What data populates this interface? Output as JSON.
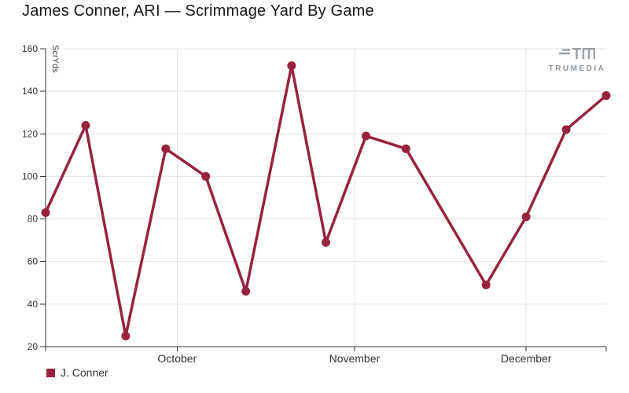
{
  "branding": {
    "logo_text": "TRUMEDIA"
  },
  "chart_data": {
    "type": "line",
    "title": "James Conner, ARI — Scrimmage Yard By Game",
    "xlabel": "",
    "ylabel": "ScrYds",
    "ylim": [
      20,
      160
    ],
    "y_ticks": [
      20,
      40,
      60,
      80,
      100,
      120,
      140,
      160
    ],
    "x_domain": [
      "2024-09-08",
      "2024-12-15"
    ],
    "x_ticks": [
      {
        "date": "2024-10-01",
        "label": "October"
      },
      {
        "date": "2024-11-01",
        "label": "November"
      },
      {
        "date": "2024-12-01",
        "label": "December"
      }
    ],
    "grid": true,
    "legend_position": "bottom-left",
    "series": [
      {
        "name": "J. Conner",
        "color": "#97233F",
        "points": [
          {
            "date": "2024-09-08",
            "value": 83
          },
          {
            "date": "2024-09-15",
            "value": 124
          },
          {
            "date": "2024-09-22",
            "value": 25
          },
          {
            "date": "2024-09-29",
            "value": 113
          },
          {
            "date": "2024-10-06",
            "value": 100
          },
          {
            "date": "2024-10-13",
            "value": 46
          },
          {
            "date": "2024-10-21",
            "value": 152
          },
          {
            "date": "2024-10-27",
            "value": 69
          },
          {
            "date": "2024-11-03",
            "value": 119
          },
          {
            "date": "2024-11-10",
            "value": 113
          },
          {
            "date": "2024-11-24",
            "value": 49
          },
          {
            "date": "2024-12-01",
            "value": 81
          },
          {
            "date": "2024-12-08",
            "value": 122
          },
          {
            "date": "2024-12-15",
            "value": 138
          }
        ]
      }
    ]
  }
}
